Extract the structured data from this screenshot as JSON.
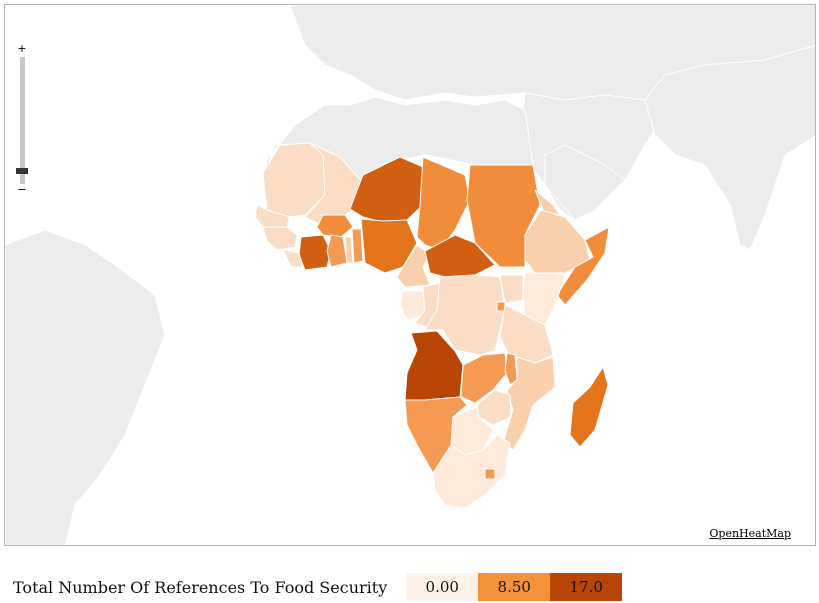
{
  "map": {
    "credit": "OpenHeatMap",
    "zoom": {
      "plus": "+",
      "minus": "−",
      "level": 0.1
    },
    "colors": {
      "background_land": "#ececec",
      "c0": "#fdeada",
      "c1": "#fbdcc4",
      "c2": "#f9cfac",
      "c3": "#f49a53",
      "c4": "#f08c3a",
      "c5": "#e4741c",
      "c6": "#d05f12",
      "c7": "#b84406"
    }
  },
  "legend": {
    "title": "Total Number Of References To Food Security",
    "stops": [
      {
        "label": "0.00",
        "color": "#fdf2e8"
      },
      {
        "label": "8.50",
        "color": "#f39237"
      },
      {
        "label": "17.0",
        "color": "#b84406"
      }
    ]
  }
}
